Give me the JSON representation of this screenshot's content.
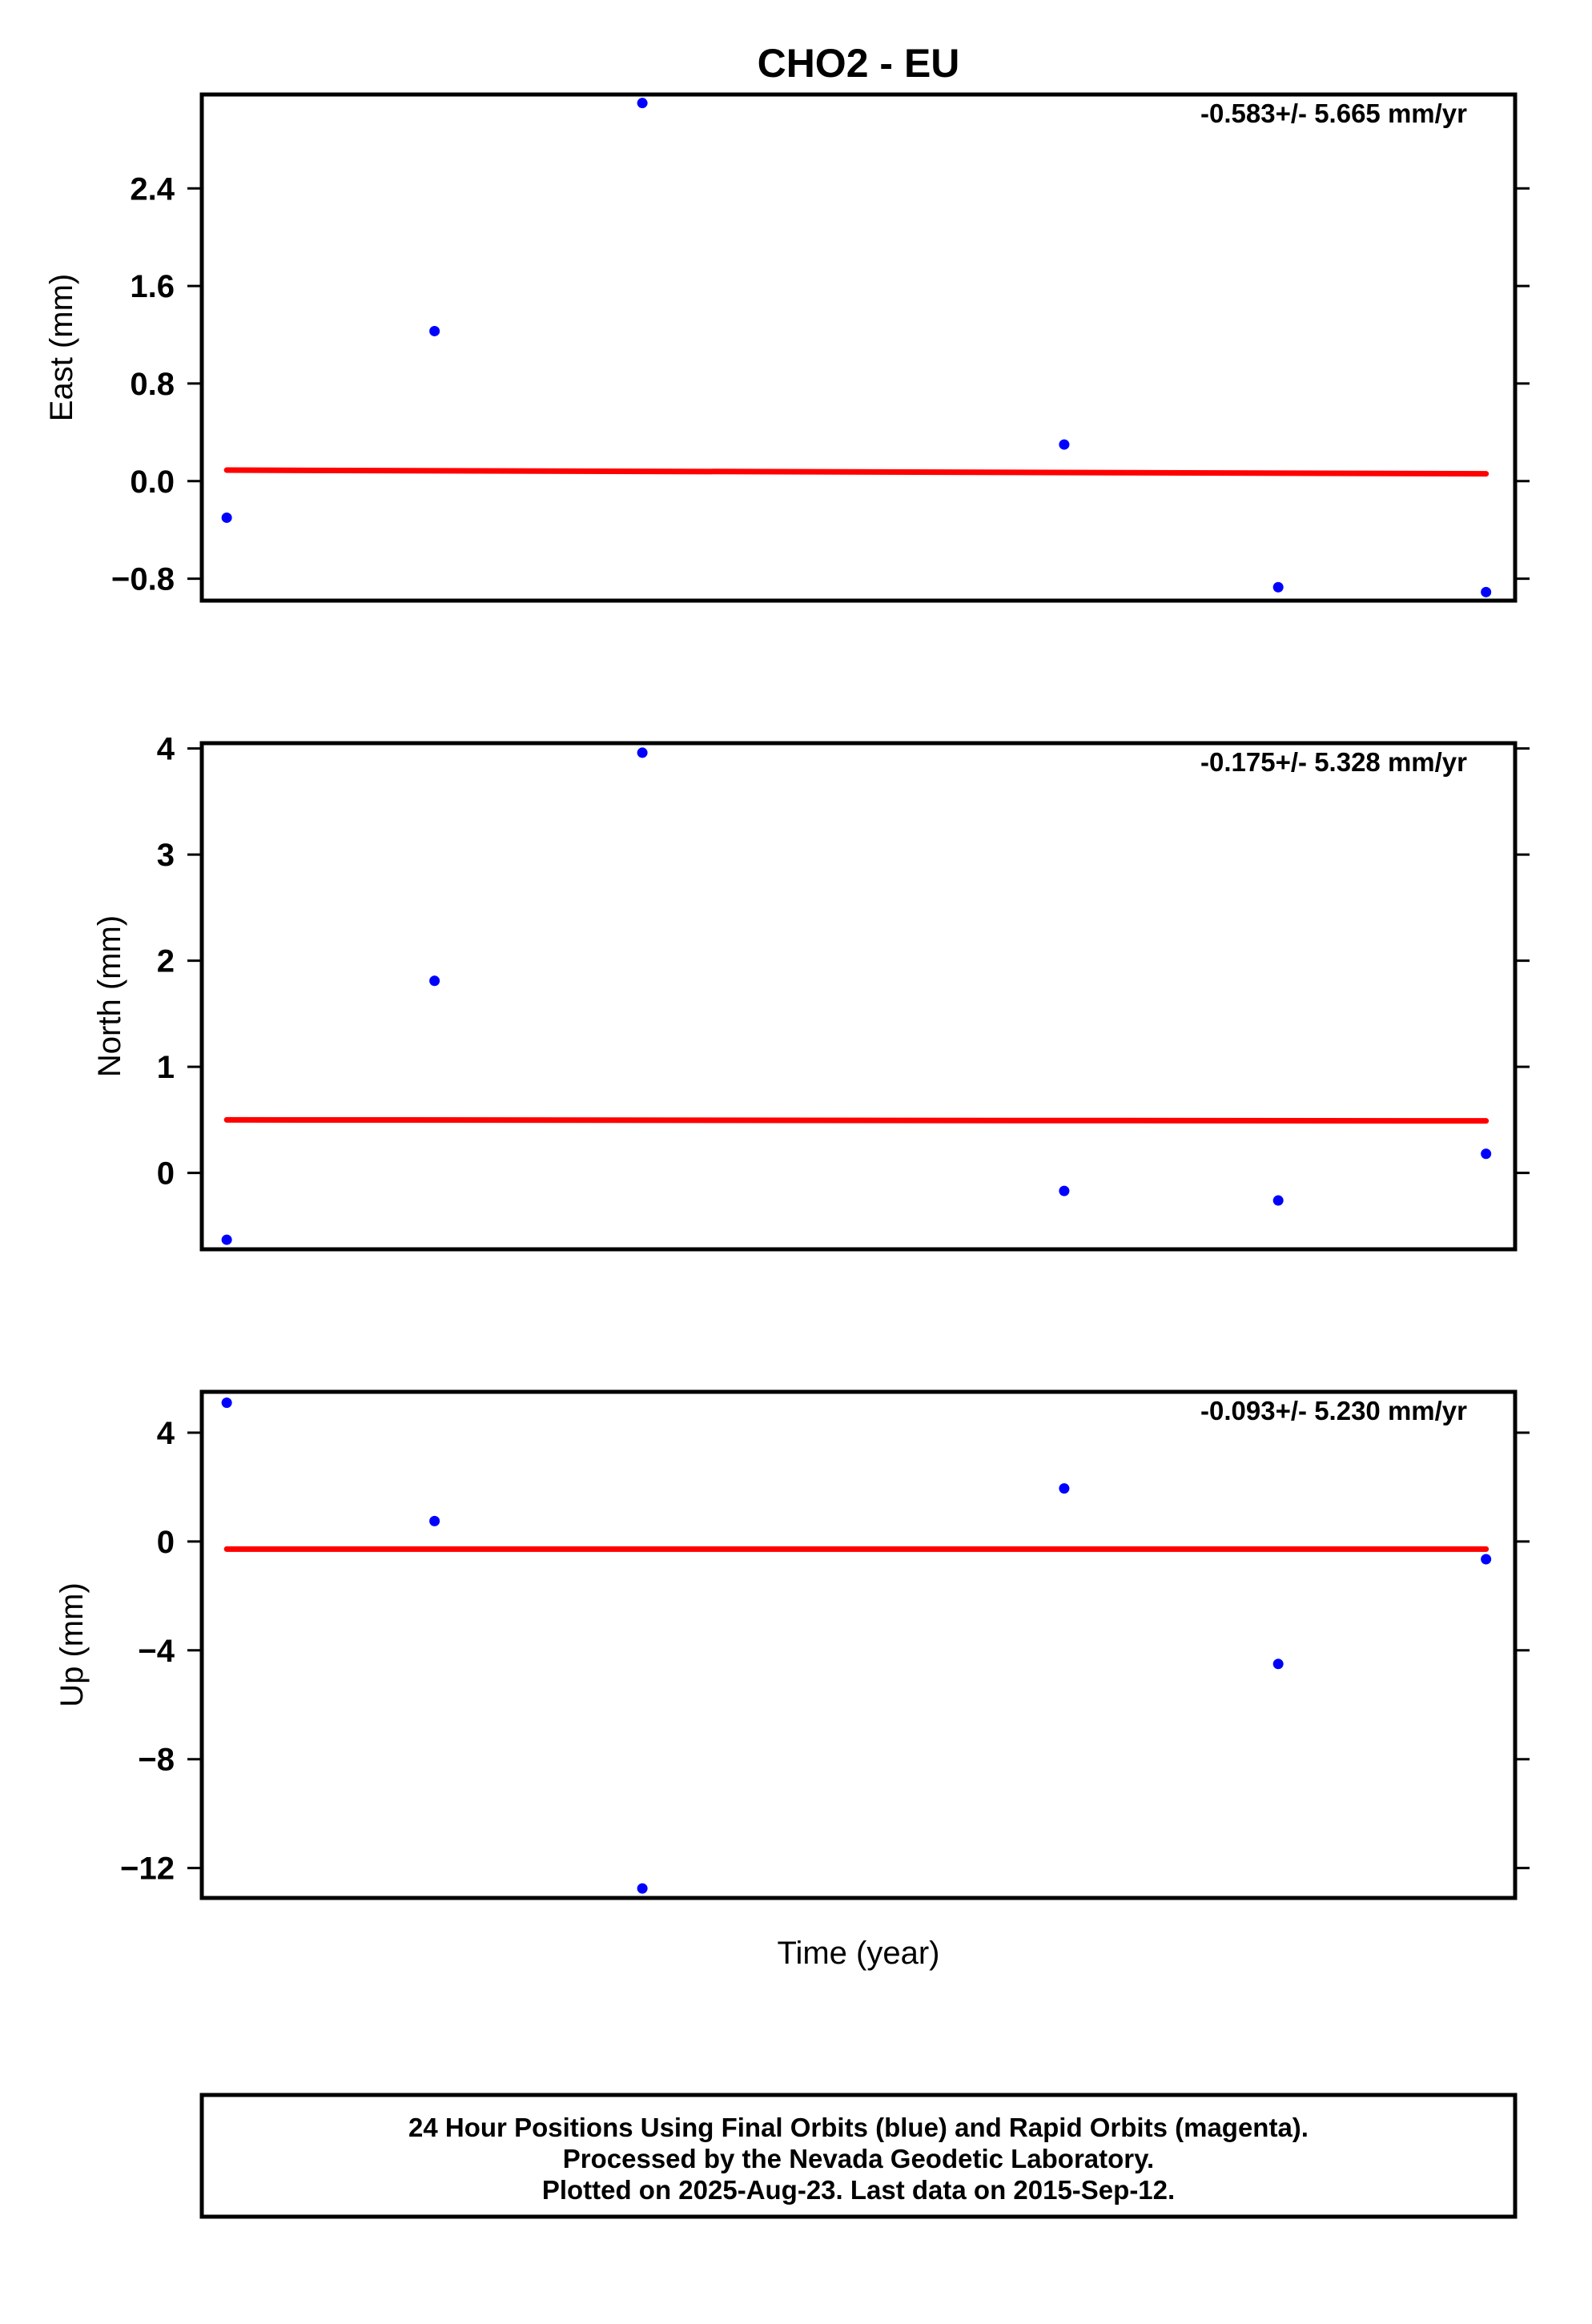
{
  "title": "CHO2 - EU",
  "xlabel": "Time (year)",
  "footer": {
    "lines": [
      "24 Hour Positions Using Final Orbits (blue) and Rapid Orbits (magenta).",
      "Processed by the Nevada Geodetic Laboratory.",
      "Plotted on 2025-Aug-23. Last data on 2015-Sep-12."
    ]
  },
  "colors": {
    "points": "#0000ff",
    "trend": "#ff0000",
    "frame": "#000000"
  },
  "chart_data": [
    {
      "type": "scatter",
      "ylabel": "East (mm)",
      "rate_label": "-0.583+/- 5.665 mm/yr",
      "yticks": [
        -0.8,
        0.0,
        0.8,
        1.6,
        2.4
      ],
      "ytick_labels": [
        "−0.8",
        "0.0",
        "0.8",
        "1.6",
        "2.4"
      ],
      "ylim": [
        -0.98,
        3.17
      ],
      "points": [
        [
          0.0,
          -0.3
        ],
        [
          1.0,
          1.23
        ],
        [
          2.0,
          3.1
        ],
        [
          4.03,
          0.3
        ],
        [
          5.06,
          -0.87
        ],
        [
          6.06,
          -0.91
        ]
      ],
      "trend": [
        [
          0.0,
          0.09
        ],
        [
          6.06,
          0.06
        ]
      ],
      "xlim": [
        -0.12,
        6.2
      ]
    },
    {
      "type": "scatter",
      "ylabel": "North (mm)",
      "rate_label": "-0.175+/- 5.328 mm/yr",
      "yticks": [
        0,
        1,
        2,
        3,
        4
      ],
      "ytick_labels": [
        "0",
        "1",
        "2",
        "3",
        "4"
      ],
      "ylim": [
        -0.72,
        4.05
      ],
      "points": [
        [
          0.0,
          -0.63
        ],
        [
          1.0,
          1.81
        ],
        [
          2.0,
          3.96
        ],
        [
          4.03,
          -0.17
        ],
        [
          5.06,
          -0.26
        ],
        [
          6.06,
          0.18
        ]
      ],
      "trend": [
        [
          0.0,
          0.5
        ],
        [
          6.06,
          0.49
        ]
      ],
      "xlim": [
        -0.12,
        6.2
      ]
    },
    {
      "type": "scatter",
      "ylabel": "Up (mm)",
      "rate_label": "-0.093+/- 5.230 mm/yr",
      "yticks": [
        -12,
        -8,
        -4,
        0,
        4
      ],
      "ytick_labels": [
        "−12",
        "−8",
        "−4",
        "0",
        "4"
      ],
      "ylim": [
        -13.1,
        5.5
      ],
      "points": [
        [
          0.0,
          5.1
        ],
        [
          1.0,
          0.75
        ],
        [
          2.0,
          -12.75
        ],
        [
          4.03,
          1.95
        ],
        [
          5.06,
          -4.5
        ],
        [
          6.06,
          -0.65
        ]
      ],
      "trend": [
        [
          0.0,
          -0.28
        ],
        [
          6.06,
          -0.28
        ]
      ],
      "xlim": [
        -0.12,
        6.2
      ]
    }
  ]
}
